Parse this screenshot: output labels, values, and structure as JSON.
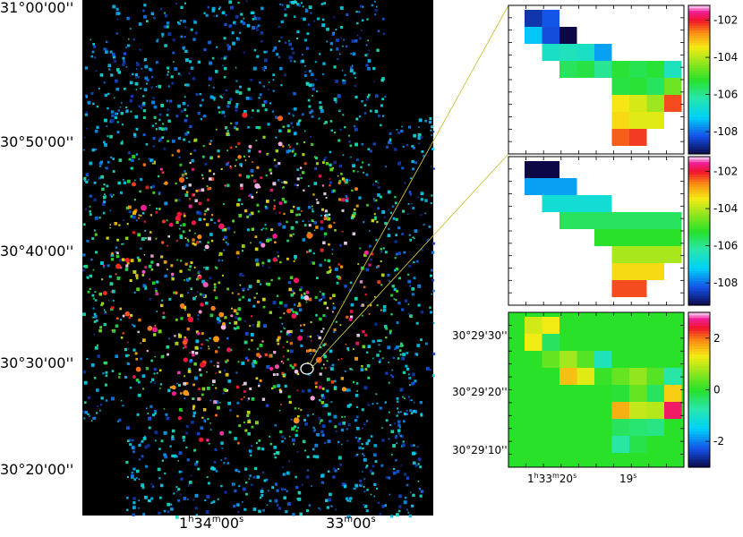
{
  "main_map": {
    "dec_ticks": [
      "31°00'00''",
      "30°50'00''",
      "30°40'00''",
      "30°30'00''",
      "30°20'00''"
    ],
    "ra_ticks": [
      {
        "h": "1",
        "hu": "h",
        "m": "34",
        "mu": "m",
        "s": "00",
        "su": "s"
      },
      {
        "m": "33",
        "mu": "m",
        "s": "00",
        "su": "s"
      }
    ]
  },
  "chart_data": [
    {
      "type": "heatmap",
      "title": "",
      "colorbar_ticks": [
        -102,
        -104,
        -106,
        -108
      ],
      "vlim": [
        -109.2,
        -101.2
      ],
      "cells": [
        [
          0,
          0,
          -108.6
        ],
        [
          1,
          0,
          -108.2
        ],
        [
          0,
          1,
          -107.3
        ],
        [
          1,
          1,
          -108.3
        ],
        [
          2,
          1,
          -109.2
        ],
        [
          1,
          2,
          -106.5
        ],
        [
          2,
          2,
          -106.4
        ],
        [
          3,
          2,
          -106.5
        ],
        [
          4,
          2,
          -107.6
        ],
        [
          2,
          3,
          -105.6
        ],
        [
          3,
          3,
          -105.4
        ],
        [
          4,
          3,
          -106.0
        ],
        [
          5,
          3,
          -105.3
        ],
        [
          6,
          3,
          -105.5
        ],
        [
          7,
          3,
          -105.3
        ],
        [
          8,
          3,
          -106.4
        ],
        [
          5,
          4,
          -105.4
        ],
        [
          6,
          4,
          -105.3
        ],
        [
          7,
          4,
          -105.6
        ],
        [
          8,
          4,
          -104.6
        ],
        [
          5,
          5,
          -103.4
        ],
        [
          6,
          5,
          -103.7
        ],
        [
          7,
          5,
          -104.2
        ],
        [
          8,
          5,
          -102.3
        ],
        [
          5,
          6,
          -103.3
        ],
        [
          6,
          6,
          -103.6
        ],
        [
          7,
          6,
          -103.6
        ],
        [
          5,
          7,
          -102.4
        ],
        [
          6,
          7,
          -102.2
        ]
      ]
    },
    {
      "type": "heatmap",
      "title": "",
      "colorbar_ticks": [
        -102,
        -104,
        -106,
        -108
      ],
      "vlim": [
        -109.2,
        -101.2
      ],
      "cells": [
        [
          0,
          0,
          -109.2
        ],
        [
          1,
          0,
          -109.2
        ],
        [
          0,
          1,
          -107.6
        ],
        [
          1,
          1,
          -107.6
        ],
        [
          2,
          1,
          -107.6
        ],
        [
          1,
          2,
          -106.7
        ],
        [
          2,
          2,
          -106.7
        ],
        [
          3,
          2,
          -106.7
        ],
        [
          4,
          2,
          -106.7
        ],
        [
          2,
          3,
          -105.6
        ],
        [
          3,
          3,
          -105.6
        ],
        [
          4,
          3,
          -105.6
        ],
        [
          5,
          3,
          -105.6
        ],
        [
          6,
          3,
          -105.6
        ],
        [
          7,
          3,
          -105.6
        ],
        [
          8,
          3,
          -105.6
        ],
        [
          4,
          4,
          -105.2
        ],
        [
          5,
          4,
          -105.2
        ],
        [
          6,
          4,
          -105.2
        ],
        [
          7,
          4,
          -105.2
        ],
        [
          8,
          4,
          -105.2
        ],
        [
          5,
          5,
          -104.1
        ],
        [
          6,
          5,
          -104.1
        ],
        [
          7,
          5,
          -104.1
        ],
        [
          8,
          5,
          -104.1
        ],
        [
          5,
          6,
          -103.3
        ],
        [
          6,
          6,
          -103.3
        ],
        [
          7,
          6,
          -103.3
        ],
        [
          5,
          7,
          -102.3
        ],
        [
          6,
          7,
          -102.3
        ]
      ]
    },
    {
      "type": "heatmap",
      "title": "",
      "colorbar_ticks": [
        2,
        0,
        -2
      ],
      "vlim": [
        -3,
        3
      ],
      "background_value": 0,
      "y_ticks": [
        "30°29'30''",
        "30°29'20''",
        "30°29'10''"
      ],
      "x_ticks": [
        {
          "h": "1",
          "hu": "h",
          "m": "33",
          "mu": "m",
          "s": "20",
          "su": "s"
        },
        {
          "s": "19",
          "su": "s"
        }
      ],
      "cells": [
        [
          0,
          0,
          1.1
        ],
        [
          1,
          0,
          1.3
        ],
        [
          0,
          1,
          1.3
        ],
        [
          1,
          1,
          -0.3
        ],
        [
          2,
          1,
          0.0
        ],
        [
          1,
          2,
          0.4
        ],
        [
          2,
          2,
          0.8
        ],
        [
          3,
          2,
          0.3
        ],
        [
          4,
          2,
          -0.9
        ],
        [
          2,
          3,
          1.6
        ],
        [
          3,
          3,
          1.2
        ],
        [
          4,
          3,
          0.1
        ],
        [
          5,
          3,
          0.4
        ],
        [
          6,
          3,
          0.7
        ],
        [
          7,
          3,
          0.3
        ],
        [
          8,
          3,
          -0.7
        ],
        [
          5,
          4,
          -0.1
        ],
        [
          6,
          4,
          0.4
        ],
        [
          7,
          4,
          -0.3
        ],
        [
          8,
          4,
          1.5
        ],
        [
          5,
          5,
          1.7
        ],
        [
          6,
          5,
          1.0
        ],
        [
          7,
          5,
          0.9
        ],
        [
          8,
          5,
          2.6
        ],
        [
          5,
          6,
          -0.3
        ],
        [
          6,
          6,
          -0.4
        ],
        [
          7,
          6,
          -0.5
        ],
        [
          5,
          7,
          -0.7
        ],
        [
          6,
          7,
          -0.2
        ]
      ]
    }
  ]
}
